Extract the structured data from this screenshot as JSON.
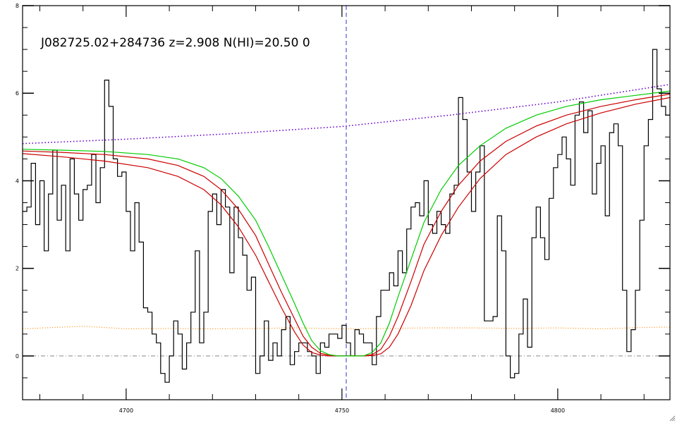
{
  "chart_data": {
    "type": "line",
    "title": "J082725.02+284736 z=2.908 N(HI)=20.50 0",
    "xlabel": "",
    "ylabel": "",
    "xlim": [
      4676,
      4826
    ],
    "ylim": [
      -1,
      8
    ],
    "x_ticks": [
      4700,
      4750,
      4800
    ],
    "y_ticks": [
      0,
      2,
      4,
      6,
      8
    ],
    "grid": false,
    "center_wavelength": 4751,
    "colors": {
      "flux": "#000000",
      "continuum": "#6600cc",
      "error": "#ff8800",
      "fit": "#00cc00",
      "fit_bounds": "#cc0000",
      "center": "#3333cc",
      "zero": "#888888"
    },
    "series": [
      {
        "type": "step",
        "x": [
          4676,
          4677,
          4678,
          4679,
          4680,
          4681,
          4682,
          4683,
          4684,
          4685,
          4686,
          4687,
          4688,
          4689,
          4690,
          4691,
          4692,
          4693,
          4694,
          4695,
          4696,
          4697,
          4698,
          4699,
          4700,
          4701,
          4702,
          4703,
          4704,
          4705,
          4706,
          4707,
          4708,
          4709,
          4710,
          4711,
          4712,
          4713,
          4714,
          4715,
          4716,
          4717,
          4718,
          4719,
          4720,
          4721,
          4722,
          4723,
          4724,
          4725,
          4726,
          4727,
          4728,
          4729,
          4730,
          4731,
          4732,
          4733,
          4734,
          4735,
          4736,
          4737,
          4738,
          4739,
          4740,
          4741,
          4742,
          4743,
          4744,
          4745,
          4746,
          4747,
          4748,
          4749,
          4750,
          4751,
          4752,
          4753,
          4754,
          4755,
          4756,
          4757,
          4758,
          4759,
          4760,
          4761,
          4762,
          4763,
          4764,
          4765,
          4766,
          4767,
          4768,
          4769,
          4770,
          4771,
          4772,
          4773,
          4774,
          4775,
          4776,
          4777,
          4778,
          4779,
          4780,
          4781,
          4782,
          4783,
          4784,
          4785,
          4786,
          4787,
          4788,
          4789,
          4790,
          4791,
          4792,
          4793,
          4794,
          4795,
          4796,
          4797,
          4798,
          4799,
          4800,
          4801,
          4802,
          4803,
          4804,
          4805,
          4806,
          4807,
          4808,
          4809,
          4810,
          4811,
          4812,
          4813,
          4814,
          4815,
          4816,
          4817,
          4818,
          4819,
          4820,
          4821,
          4822,
          4823,
          4824,
          4825
        ],
        "y": [
          3.3,
          3.4,
          4.4,
          3.0,
          4.0,
          2.4,
          3.7,
          4.7,
          3.1,
          3.9,
          2.4,
          4.5,
          3.7,
          3.1,
          3.8,
          3.9,
          4.6,
          3.5,
          4.3,
          6.3,
          5.7,
          4.5,
          4.1,
          4.2,
          3.3,
          2.4,
          3.5,
          2.6,
          1.1,
          1.0,
          0.5,
          0.3,
          -0.4,
          -0.6,
          0.0,
          0.8,
          0.5,
          -0.3,
          0.3,
          1.0,
          2.4,
          0.3,
          1.0,
          3.3,
          3.7,
          3.0,
          3.8,
          3.4,
          1.9,
          3.4,
          2.7,
          2.3,
          1.5,
          1.8,
          -0.4,
          0.0,
          0.8,
          -0.1,
          0.3,
          0.0,
          0.6,
          0.9,
          -0.2,
          0.1,
          0.3,
          0.3,
          0.1,
          0.0,
          -0.4,
          0.3,
          0.2,
          0.5,
          0.5,
          0.4,
          0.7,
          0.3,
          0.0,
          0.6,
          0.5,
          0.3,
          0.3,
          -0.2,
          0.9,
          1.5,
          1.5,
          1.9,
          1.6,
          2.4,
          1.9,
          2.9,
          3.4,
          3.5,
          3.2,
          4.0,
          3.0,
          2.8,
          3.3,
          3.0,
          2.8,
          3.7,
          3.9,
          5.9,
          5.4,
          4.2,
          3.3,
          4.2,
          4.8,
          0.8,
          0.8,
          0.9,
          3.2,
          2.4,
          0.0,
          -0.5,
          -0.4,
          0.5,
          1.3,
          0.2,
          2.7,
          3.4,
          2.7,
          2.2,
          3.6,
          4.3,
          4.6,
          5.0,
          4.5,
          3.9,
          5.5,
          5.8,
          5.1,
          5.6,
          3.7,
          4.4,
          4.8,
          3.2,
          5.1,
          5.3,
          4.8,
          1.5,
          0.1,
          0.6,
          1.5,
          3.1,
          4.8,
          5.4,
          7.0,
          6.1,
          5.7,
          5.5
        ]
      },
      {
        "name": "",
        "type": "dotted",
        "x": [
          4676,
          4700,
          4725,
          4750,
          4775,
          4800,
          4826
        ],
        "y": [
          4.85,
          4.95,
          5.08,
          5.24,
          5.5,
          5.8,
          6.2
        ]
      },
      {
        "name": "",
        "type": "dotted",
        "x": [
          4676,
          4690,
          4700,
          4710,
          4720,
          4730,
          4740,
          4750,
          4760,
          4770,
          4780,
          4790,
          4800,
          4810,
          4820,
          4826
        ],
        "y": [
          0.62,
          0.68,
          0.62,
          0.63,
          0.62,
          0.63,
          0.64,
          0.62,
          0.63,
          0.64,
          0.64,
          0.63,
          0.64,
          0.62,
          0.65,
          0.66
        ]
      },
      {
        "name": "",
        "type": "line",
        "x": [
          4676,
          4685,
          4695,
          4705,
          4712,
          4718,
          4722,
          4726,
          4730,
          4733,
          4736,
          4739,
          4741,
          4743,
          4745,
          4747,
          4749,
          4751,
          4753,
          4755,
          4757,
          4759,
          4761,
          4763,
          4766,
          4769,
          4773,
          4777,
          4782,
          4788,
          4795,
          4802,
          4810,
          4818,
          4826
        ],
        "y": [
          4.68,
          4.65,
          4.6,
          4.5,
          4.35,
          4.1,
          3.8,
          3.35,
          2.75,
          2.1,
          1.45,
          0.85,
          0.45,
          0.2,
          0.06,
          0.02,
          0.0,
          0.0,
          0.0,
          0.0,
          0.03,
          0.15,
          0.45,
          0.9,
          1.7,
          2.55,
          3.3,
          3.9,
          4.45,
          4.9,
          5.25,
          5.5,
          5.7,
          5.85,
          5.98
        ]
      },
      {
        "name": "",
        "type": "line",
        "x": [
          4676,
          4685,
          4695,
          4705,
          4712,
          4718,
          4722,
          4726,
          4730,
          4733,
          4736,
          4739,
          4741,
          4743,
          4745,
          4747,
          4749,
          4751,
          4753,
          4755,
          4757,
          4759,
          4761,
          4763,
          4766,
          4769,
          4773,
          4777,
          4782,
          4788,
          4795,
          4802,
          4810,
          4818,
          4826
        ],
        "y": [
          4.72,
          4.7,
          4.67,
          4.6,
          4.5,
          4.3,
          4.05,
          3.65,
          3.1,
          2.5,
          1.85,
          1.2,
          0.75,
          0.35,
          0.12,
          0.03,
          0.0,
          0.0,
          0.0,
          0.0,
          0.08,
          0.3,
          0.75,
          1.35,
          2.2,
          3.05,
          3.8,
          4.35,
          4.8,
          5.2,
          5.5,
          5.7,
          5.85,
          5.95,
          6.05
        ]
      },
      {
        "name": "",
        "type": "line",
        "x": [
          4676,
          4685,
          4695,
          4705,
          4712,
          4718,
          4722,
          4726,
          4730,
          4733,
          4736,
          4739,
          4741,
          4743,
          4745,
          4747,
          4749,
          4751,
          4753,
          4755,
          4757,
          4759,
          4761,
          4763,
          4766,
          4769,
          4773,
          4777,
          4782,
          4788,
          4795,
          4802,
          4810,
          4818,
          4826
        ],
        "y": [
          4.62,
          4.55,
          4.45,
          4.3,
          4.1,
          3.8,
          3.45,
          2.95,
          2.3,
          1.7,
          1.1,
          0.55,
          0.25,
          0.08,
          0.02,
          0.0,
          0.0,
          0.0,
          0.0,
          0.0,
          0.01,
          0.05,
          0.2,
          0.5,
          1.15,
          1.95,
          2.75,
          3.4,
          4.05,
          4.6,
          5.0,
          5.3,
          5.55,
          5.75,
          5.9
        ]
      }
    ]
  }
}
